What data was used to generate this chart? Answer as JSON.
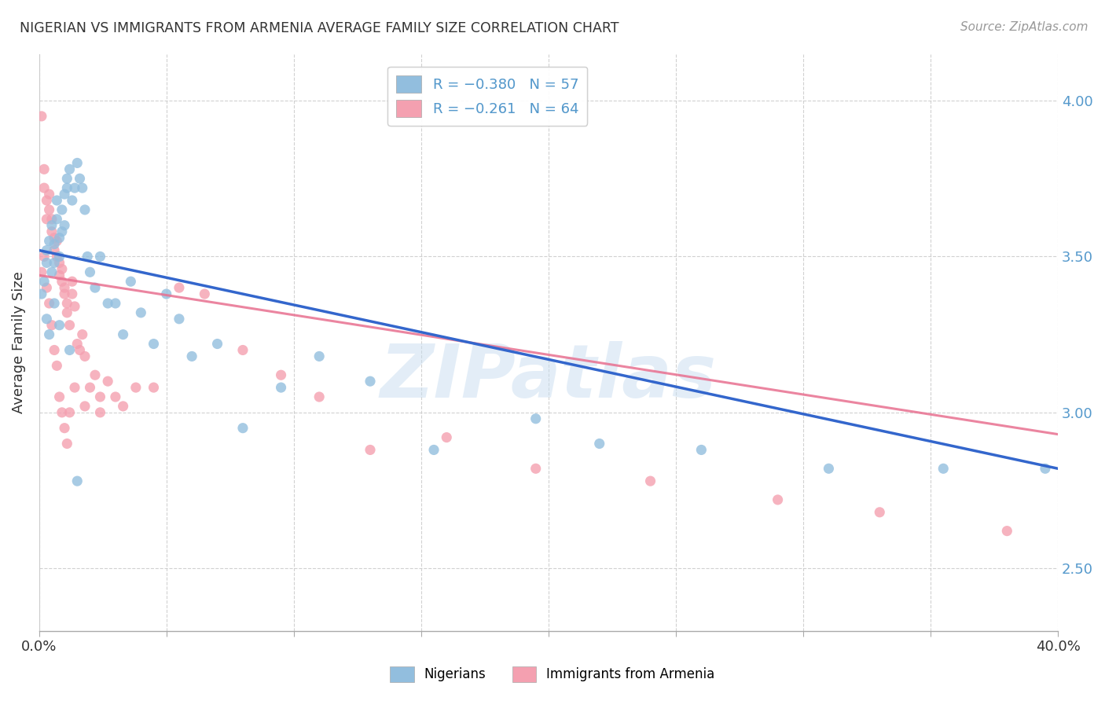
{
  "title": "NIGERIAN VS IMMIGRANTS FROM ARMENIA AVERAGE FAMILY SIZE CORRELATION CHART",
  "source": "Source: ZipAtlas.com",
  "ylabel": "Average Family Size",
  "right_yticks": [
    2.5,
    3.0,
    3.5,
    4.0
  ],
  "watermark": "ZIPatlas",
  "legend_bottom": [
    "Nigerians",
    "Immigrants from Armenia"
  ],
  "scatter_color_blue": "#92bede",
  "scatter_color_pink": "#f4a0b0",
  "line_color_blue": "#3366cc",
  "line_color_pink": "#e87090",
  "background_color": "#ffffff",
  "grid_color": "#cccccc",
  "title_color": "#333333",
  "right_axis_color": "#5599cc",
  "xlim": [
    0.0,
    0.4
  ],
  "ylim": [
    2.3,
    4.15
  ],
  "blue_line_y0": 3.52,
  "blue_line_y1": 2.82,
  "pink_line_y0": 3.44,
  "pink_line_y1": 2.93,
  "blue_scatter_x": [
    0.001,
    0.002,
    0.003,
    0.003,
    0.004,
    0.005,
    0.005,
    0.006,
    0.006,
    0.007,
    0.007,
    0.008,
    0.008,
    0.009,
    0.009,
    0.01,
    0.01,
    0.011,
    0.011,
    0.012,
    0.013,
    0.014,
    0.015,
    0.016,
    0.017,
    0.018,
    0.019,
    0.02,
    0.022,
    0.024,
    0.027,
    0.03,
    0.033,
    0.036,
    0.04,
    0.045,
    0.05,
    0.055,
    0.06,
    0.07,
    0.08,
    0.095,
    0.11,
    0.13,
    0.155,
    0.195,
    0.22,
    0.26,
    0.31,
    0.355,
    0.395,
    0.003,
    0.004,
    0.006,
    0.008,
    0.012,
    0.015
  ],
  "blue_scatter_y": [
    3.38,
    3.42,
    3.48,
    3.52,
    3.55,
    3.45,
    3.6,
    3.48,
    3.54,
    3.62,
    3.68,
    3.56,
    3.5,
    3.58,
    3.65,
    3.6,
    3.7,
    3.72,
    3.75,
    3.78,
    3.68,
    3.72,
    3.8,
    3.75,
    3.72,
    3.65,
    3.5,
    3.45,
    3.4,
    3.5,
    3.35,
    3.35,
    3.25,
    3.42,
    3.32,
    3.22,
    3.38,
    3.3,
    3.18,
    3.22,
    2.95,
    3.08,
    3.18,
    3.1,
    2.88,
    2.98,
    2.9,
    2.88,
    2.82,
    2.82,
    2.82,
    3.3,
    3.25,
    3.35,
    3.28,
    3.2,
    2.78
  ],
  "pink_scatter_x": [
    0.001,
    0.002,
    0.002,
    0.003,
    0.003,
    0.004,
    0.004,
    0.005,
    0.005,
    0.006,
    0.006,
    0.007,
    0.007,
    0.008,
    0.008,
    0.009,
    0.009,
    0.01,
    0.01,
    0.011,
    0.011,
    0.012,
    0.013,
    0.013,
    0.014,
    0.015,
    0.016,
    0.017,
    0.018,
    0.02,
    0.022,
    0.024,
    0.027,
    0.03,
    0.033,
    0.038,
    0.045,
    0.055,
    0.065,
    0.08,
    0.095,
    0.11,
    0.13,
    0.16,
    0.195,
    0.24,
    0.29,
    0.33,
    0.38,
    0.001,
    0.002,
    0.003,
    0.004,
    0.005,
    0.006,
    0.007,
    0.008,
    0.009,
    0.01,
    0.011,
    0.012,
    0.014,
    0.018,
    0.024
  ],
  "pink_scatter_y": [
    3.95,
    3.78,
    3.72,
    3.68,
    3.62,
    3.65,
    3.7,
    3.58,
    3.62,
    3.52,
    3.56,
    3.5,
    3.55,
    3.48,
    3.44,
    3.42,
    3.46,
    3.4,
    3.38,
    3.35,
    3.32,
    3.28,
    3.38,
    3.42,
    3.34,
    3.22,
    3.2,
    3.25,
    3.18,
    3.08,
    3.12,
    3.05,
    3.1,
    3.05,
    3.02,
    3.08,
    3.08,
    3.4,
    3.38,
    3.2,
    3.12,
    3.05,
    2.88,
    2.92,
    2.82,
    2.78,
    2.72,
    2.68,
    2.62,
    3.45,
    3.5,
    3.4,
    3.35,
    3.28,
    3.2,
    3.15,
    3.05,
    3.0,
    2.95,
    2.9,
    3.0,
    3.08,
    3.02,
    3.0
  ]
}
